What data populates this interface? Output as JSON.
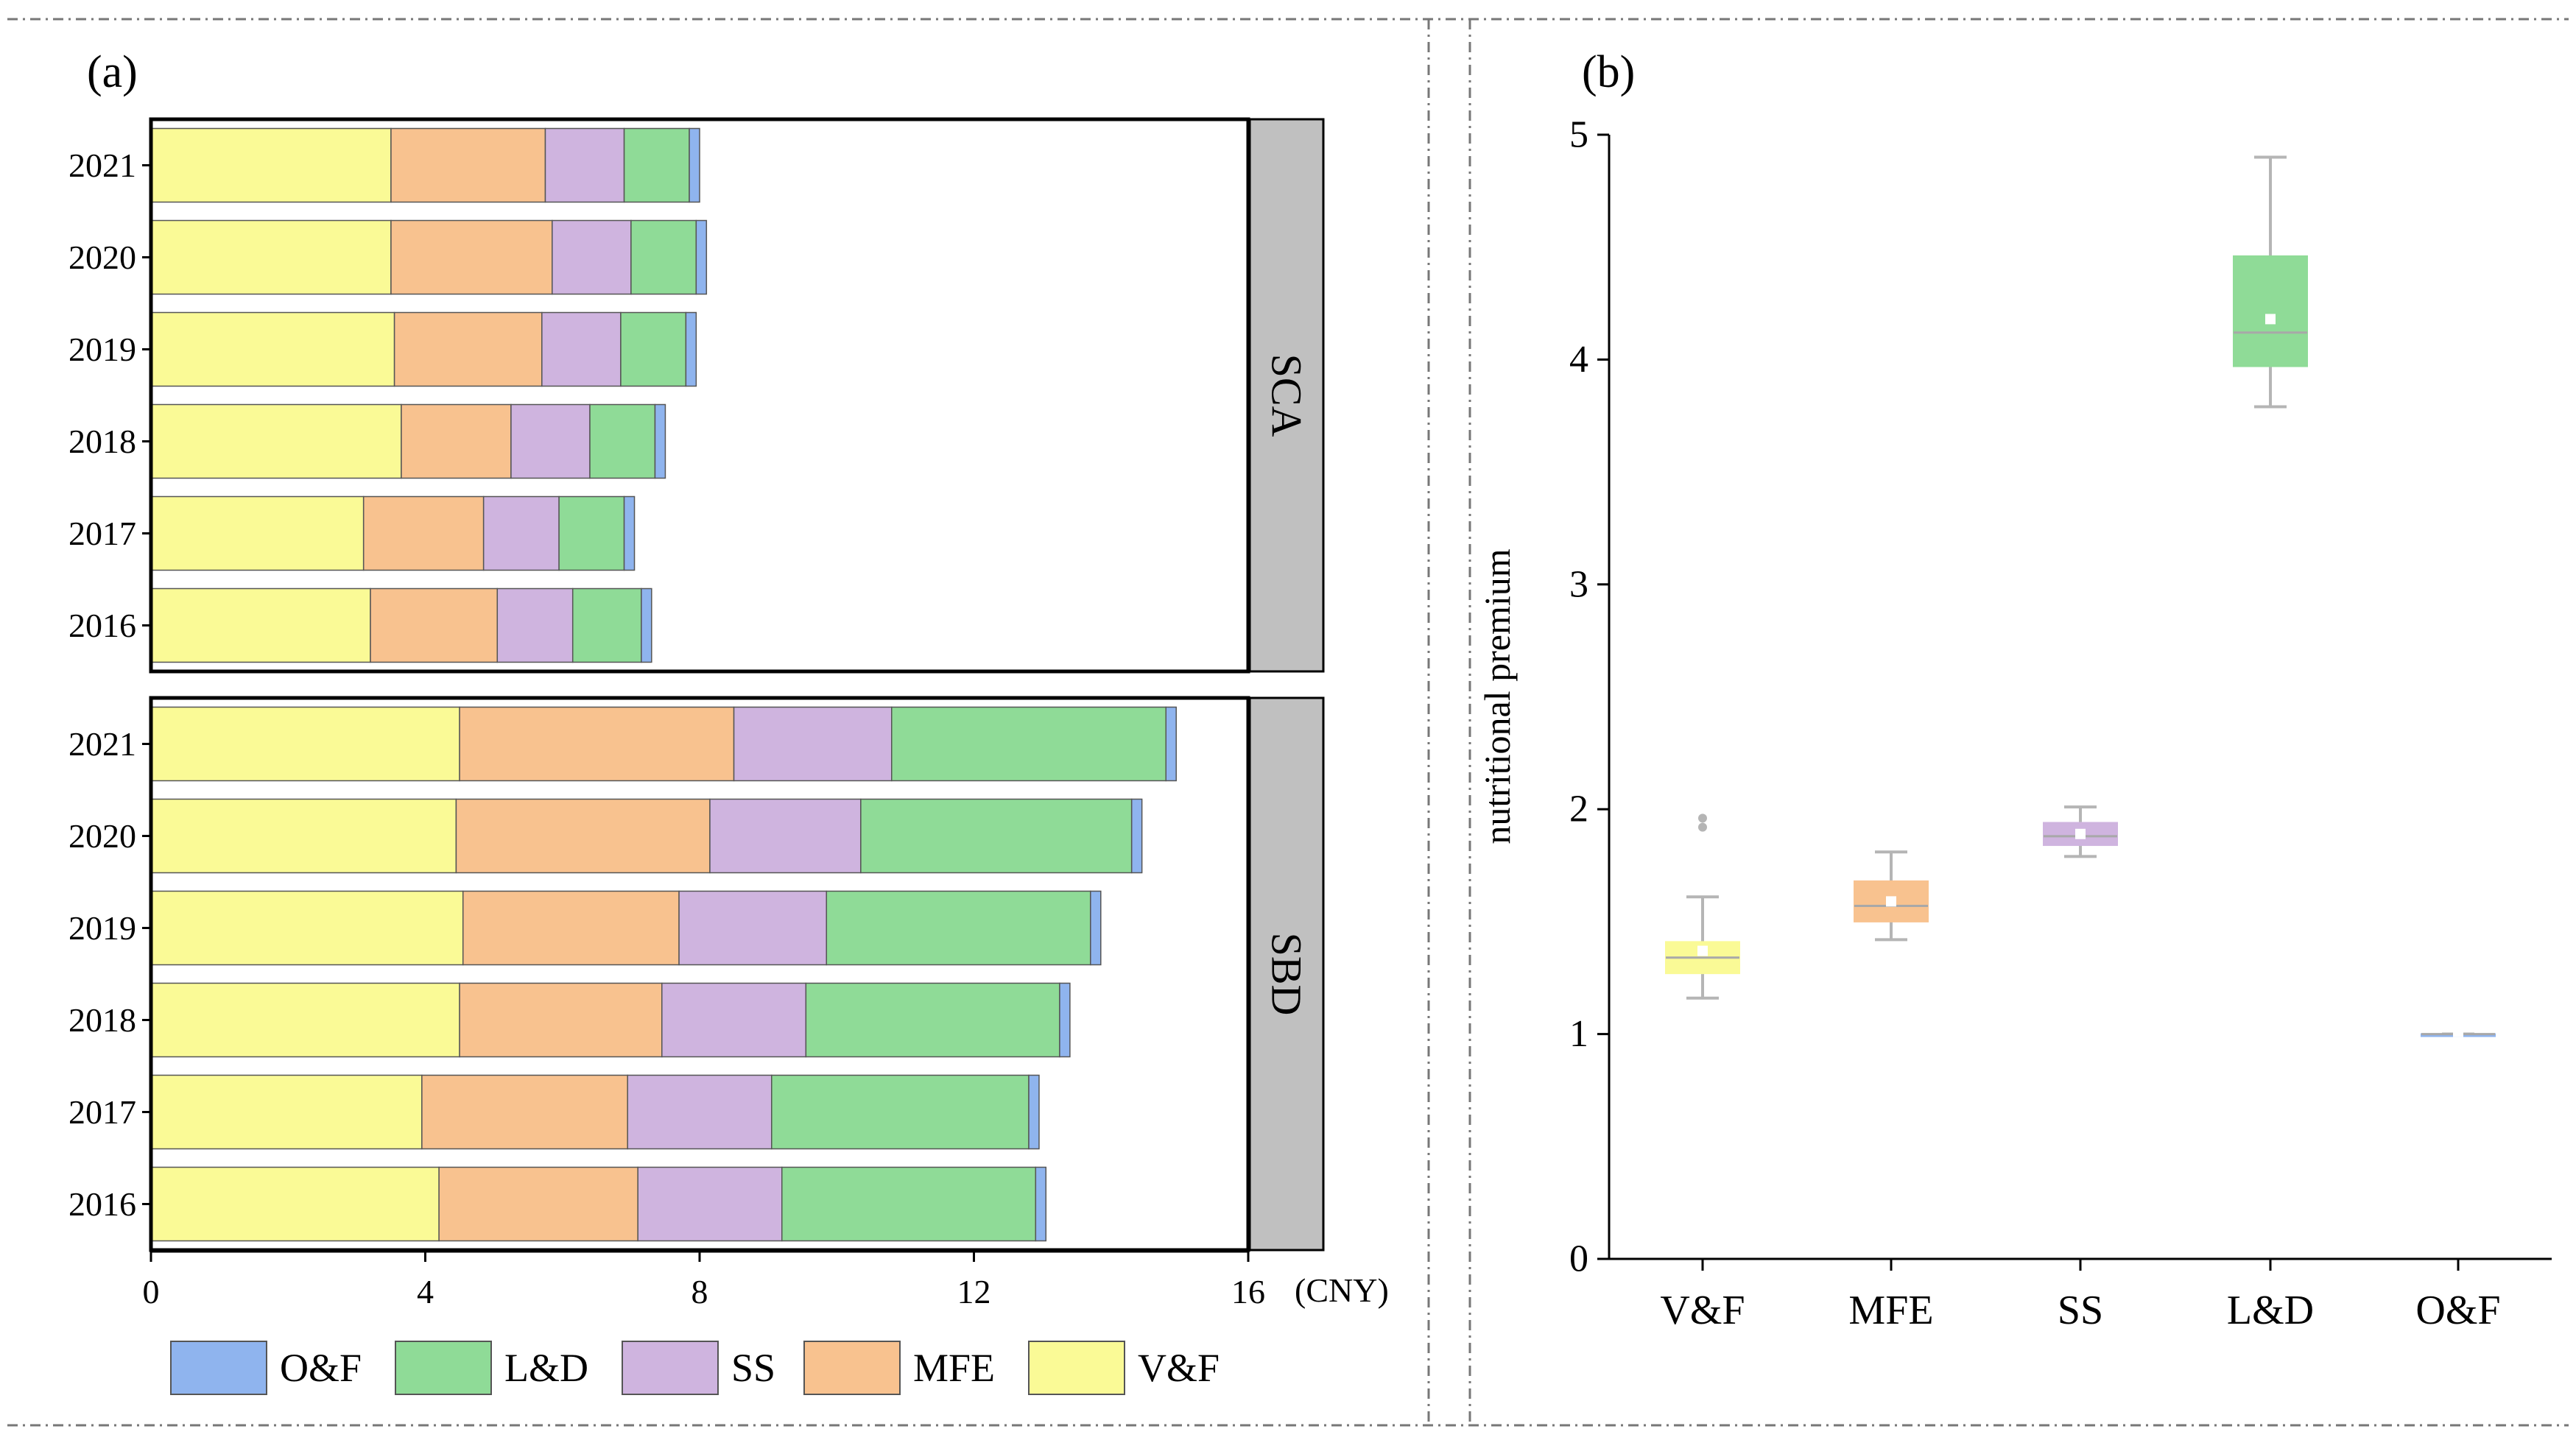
{
  "chart_data": [
    {
      "panel_label": "(a)",
      "type": "bar",
      "orientation": "horizontal",
      "stacked": true,
      "x_unit": "(CNY)",
      "xlim": [
        0,
        16
      ],
      "x_ticks": [
        "0",
        "4",
        "8",
        "12",
        "16"
      ],
      "legend": [
        "O&F",
        "L&D",
        "SS",
        "MFE",
        "V&F"
      ],
      "legend_position": "bottom",
      "series_colors": {
        "V&F": "#FAFA96",
        "MFE": "#F8C28F",
        "SS": "#CFB4DF",
        "L&D": "#8FDB97",
        "O&F": "#8FB4EE"
      },
      "groups": [
        {
          "label": "SCA",
          "categories": [
            "2021",
            "2020",
            "2019",
            "2018",
            "2017",
            "2016"
          ],
          "series": [
            {
              "name": "V&F",
              "values": [
                3.5,
                3.5,
                3.55,
                3.65,
                3.1,
                3.2
              ]
            },
            {
              "name": "MFE",
              "values": [
                2.25,
                2.35,
                2.15,
                1.6,
                1.75,
                1.85
              ]
            },
            {
              "name": "SS",
              "values": [
                1.15,
                1.15,
                1.15,
                1.15,
                1.1,
                1.1
              ]
            },
            {
              "name": "L&D",
              "values": [
                0.95,
                0.95,
                0.95,
                0.95,
                0.95,
                1.0
              ]
            },
            {
              "name": "O&F",
              "values": [
                0.15,
                0.15,
                0.15,
                0.15,
                0.15,
                0.15
              ]
            }
          ]
        },
        {
          "label": "SBD",
          "categories": [
            "2021",
            "2020",
            "2019",
            "2018",
            "2017",
            "2016"
          ],
          "series": [
            {
              "name": "V&F",
              "values": [
                4.5,
                4.45,
                4.55,
                4.5,
                3.95,
                4.2
              ]
            },
            {
              "name": "MFE",
              "values": [
                4.0,
                3.7,
                3.15,
                2.95,
                3.0,
                2.9
              ]
            },
            {
              "name": "SS",
              "values": [
                2.3,
                2.2,
                2.15,
                2.1,
                2.1,
                2.1
              ]
            },
            {
              "name": "L&D",
              "values": [
                4.0,
                3.95,
                3.85,
                3.7,
                3.75,
                3.7
              ]
            },
            {
              "name": "O&F",
              "values": [
                0.15,
                0.15,
                0.15,
                0.15,
                0.15,
                0.15
              ]
            }
          ]
        }
      ]
    },
    {
      "panel_label": "(b)",
      "type": "box",
      "ylabel": "nutritional premium",
      "ylim": [
        0,
        5
      ],
      "y_ticks": [
        "0",
        "1",
        "2",
        "3",
        "4",
        "5"
      ],
      "categories": [
        "V&F",
        "MFE",
        "SS",
        "L&D",
        "O&F"
      ],
      "boxes": [
        {
          "name": "V&F",
          "whisker_low": 1.16,
          "q1": 1.27,
          "median": 1.34,
          "q3": 1.41,
          "whisker_high": 1.61,
          "mean": 1.37,
          "outliers": [
            1.92,
            1.96
          ],
          "color": "#FAFA96"
        },
        {
          "name": "MFE",
          "whisker_low": 1.42,
          "q1": 1.5,
          "median": 1.57,
          "q3": 1.68,
          "whisker_high": 1.81,
          "mean": 1.59,
          "outliers": [],
          "color": "#F8C28F"
        },
        {
          "name": "SS",
          "whisker_low": 1.79,
          "q1": 1.84,
          "median": 1.88,
          "q3": 1.94,
          "whisker_high": 2.01,
          "mean": 1.89,
          "outliers": [],
          "color": "#CFB4DF"
        },
        {
          "name": "L&D",
          "whisker_low": 3.79,
          "q1": 3.97,
          "median": 4.12,
          "q3": 4.46,
          "whisker_high": 4.9,
          "mean": 4.18,
          "outliers": [],
          "color": "#8FDB97"
        },
        {
          "name": "O&F",
          "whisker_low": 1.0,
          "q1": 1.0,
          "median": 1.0,
          "q3": 1.0,
          "whisker_high": 1.0,
          "mean": 1.01,
          "outliers": [],
          "color": "#8FB4EE"
        }
      ]
    }
  ]
}
